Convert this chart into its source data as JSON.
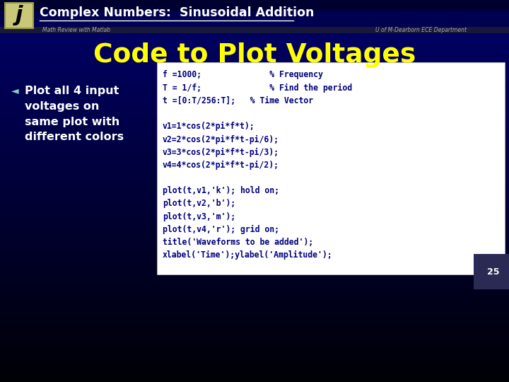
{
  "title_bar_text": "Complex Numbers:  Sinusoidal Addition",
  "subtitle_left": "Math Review with Matlab",
  "subtitle_right": "U of M-Dearborn ECE Department",
  "section_title": "Code to Plot Voltages",
  "bullet_text_lines": [
    "Plot all 4 input",
    "voltages on",
    "same plot with",
    "different colors"
  ],
  "code_lines": [
    "f =1000;              % Frequency",
    "T = 1/f;              % Find the period",
    "t =[0:T/256:T];   % Time Vector",
    "",
    "v1=1*cos(2*pi*f*t);",
    "v2=2*cos(2*pi*f*t-pi/6);",
    "v3=3*cos(2*pi*f*t-pi/3);",
    "v4=4*cos(2*pi*f*t-pi/2);",
    "",
    "plot(t,v1,'k'); hold on;",
    "plot(t,v2,'b');",
    "plot(t,v3,'m');",
    "plot(t,v4,'r'); grid on;",
    "title('Waveforms to be added');",
    "xlabel('Time');ylabel('Amplitude');"
  ],
  "page_number": "25",
  "title_color": "#FFFFFF",
  "section_title_color": "#FFFF00",
  "bullet_text_color": "#FFFFFF",
  "code_bg": "#FFFFFF",
  "code_text_color": "#000080",
  "icon_bg": "#C8C878",
  "subtitle_color": "#AAAAAA"
}
